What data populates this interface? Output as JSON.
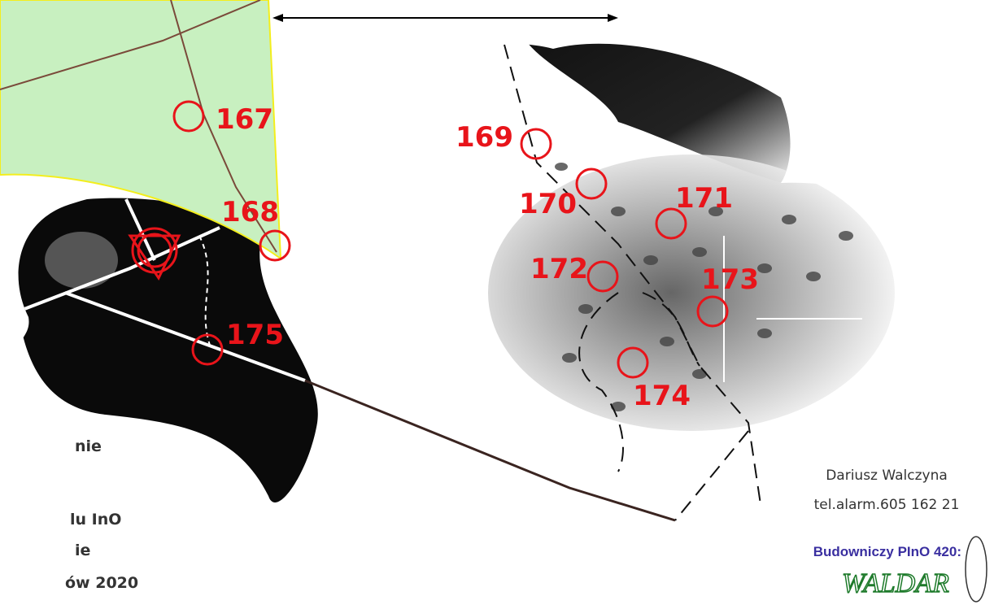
{
  "controls": [
    "167",
    "168",
    "169",
    "170",
    "171",
    "172",
    "173",
    "174",
    "175"
  ],
  "side_text": [
    "nie",
    "lu InO",
    "ie",
    "ów 2020"
  ],
  "author": {
    "name": "Dariusz Walczyna",
    "phone": "tel.alarm.605 162 21"
  },
  "builder": {
    "title": "Budowniczy PInO 420:",
    "signature": "WALDAR"
  }
}
